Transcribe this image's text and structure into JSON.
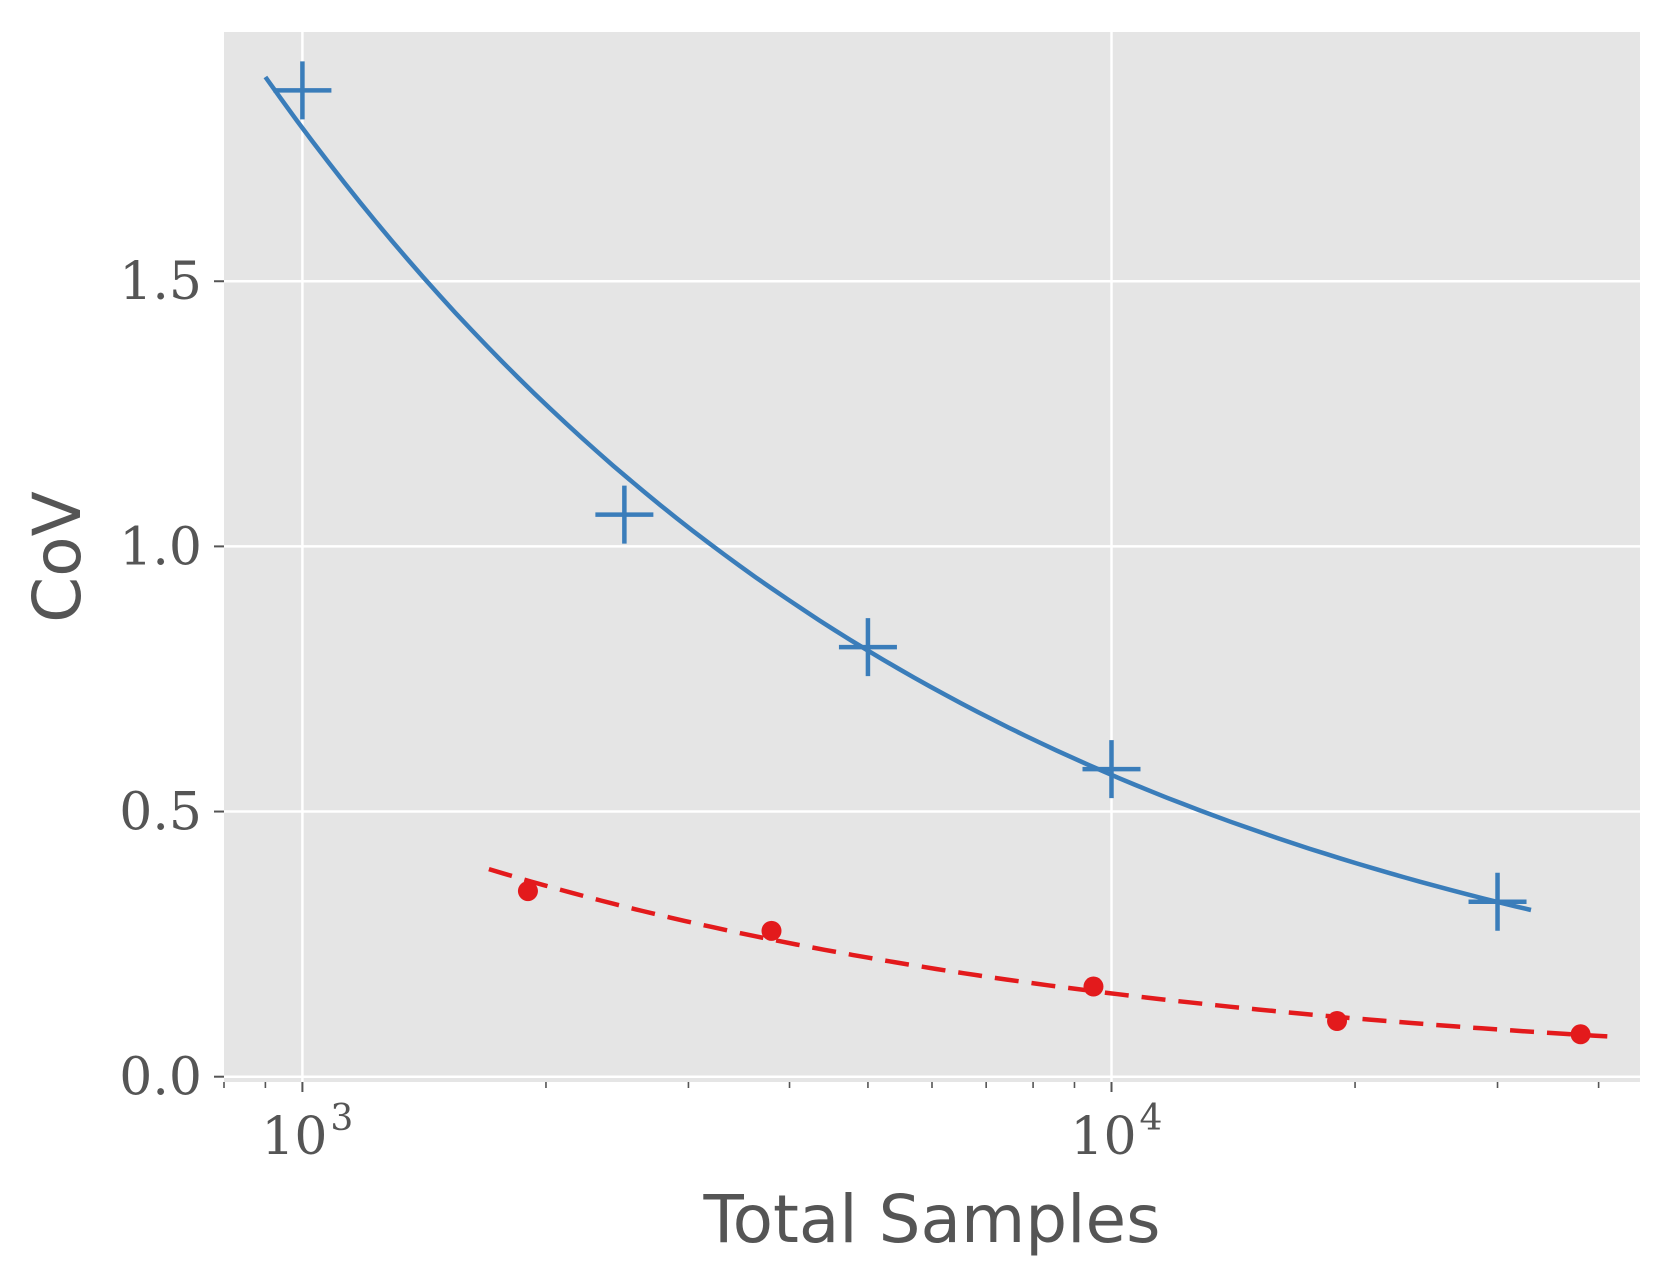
{
  "chart_data": {
    "type": "scatter",
    "xlabel": "Total Samples",
    "ylabel": "CoV",
    "xscale": "log",
    "xlim": [
      800,
      45000
    ],
    "ylim": [
      -0.01,
      1.97
    ],
    "grid": true,
    "xticks": [
      {
        "value": 1000,
        "base": "10",
        "exp": "3"
      },
      {
        "value": 10000,
        "base": "10",
        "exp": "4"
      }
    ],
    "yticks": [
      {
        "value": 0.0,
        "label": "0.0"
      },
      {
        "value": 0.5,
        "label": "0.5"
      },
      {
        "value": 1.0,
        "label": "1.0"
      },
      {
        "value": 1.5,
        "label": "1.5"
      }
    ],
    "series": [
      {
        "marker": "plus",
        "color": "#3a7dba",
        "points": [
          {
            "x": 1000,
            "y": 1.86
          },
          {
            "x": 2500,
            "y": 1.06
          },
          {
            "x": 5000,
            "y": 0.81
          },
          {
            "x": 10000,
            "y": 0.58
          },
          {
            "x": 30000,
            "y": 0.33
          }
        ],
        "fit": {
          "style": "solid",
          "x_range": [
            900,
            33000
          ],
          "curve": "power"
        }
      },
      {
        "marker": "dot",
        "color": "#e31a1c",
        "points": [
          {
            "x": 1900,
            "y": 0.35
          },
          {
            "x": 3800,
            "y": 0.275
          },
          {
            "x": 9500,
            "y": 0.17
          },
          {
            "x": 19000,
            "y": 0.105
          },
          {
            "x": 38000,
            "y": 0.08
          }
        ],
        "fit": {
          "style": "dashed",
          "x_range": [
            1700,
            41000
          ],
          "curve": "power"
        }
      }
    ]
  }
}
